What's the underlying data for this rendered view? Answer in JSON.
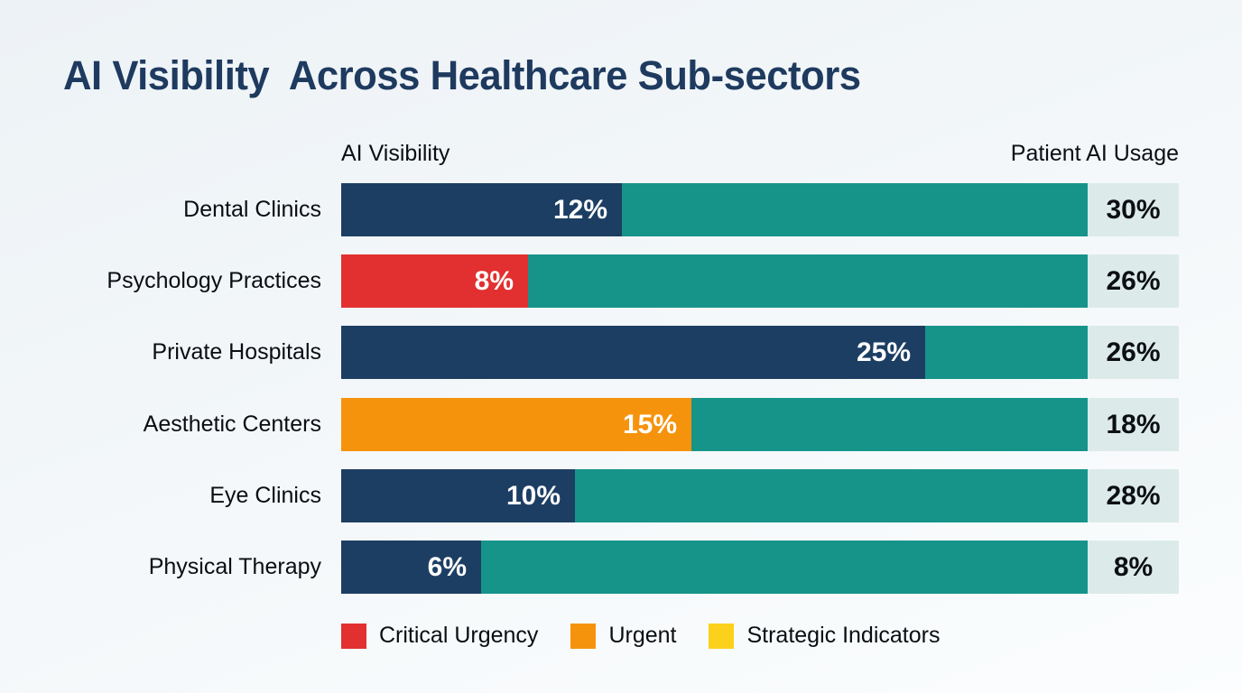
{
  "page": {
    "title": "AI Visibility  Across Healthcare Sub-sectors"
  },
  "columns": {
    "left_header": "AI Visibility",
    "right_header": "Patient AI Usage"
  },
  "rows": [
    {
      "label": "Dental Clinics",
      "ai_visibility_label": "12%",
      "ai_visibility_value": 12,
      "patient_usage_label": "30%",
      "patient_usage_value": 30,
      "segment_color": "#1d3e63"
    },
    {
      "label": "Psychology Practices",
      "ai_visibility_label": "8%",
      "ai_visibility_value": 8,
      "patient_usage_label": "26%",
      "patient_usage_value": 26,
      "segment_color": "#e23030"
    },
    {
      "label": "Private Hospitals",
      "ai_visibility_label": "25%",
      "ai_visibility_value": 25,
      "patient_usage_label": "26%",
      "patient_usage_value": 26,
      "segment_color": "#1d3e63"
    },
    {
      "label": "Aesthetic Centers",
      "ai_visibility_label": "15%",
      "ai_visibility_value": 15,
      "patient_usage_label": "18%",
      "patient_usage_value": 18,
      "segment_color": "#f6930d"
    },
    {
      "label": "Eye Clinics",
      "ai_visibility_label": "10%",
      "ai_visibility_value": 10,
      "patient_usage_label": "28%",
      "patient_usage_value": 28,
      "segment_color": "#1d3e63"
    },
    {
      "label": "Physical Therapy",
      "ai_visibility_label": "6%",
      "ai_visibility_value": 6,
      "patient_usage_label": "8%",
      "patient_usage_value": 8,
      "segment_color": "#1d3e63"
    }
  ],
  "legend": [
    {
      "label": "Critical Urgency",
      "color": "#e23030"
    },
    {
      "label": "Urgent",
      "color": "#f6930d"
    },
    {
      "label": "Strategic Indicators",
      "color": "#fcd11b"
    }
  ],
  "colors": {
    "navy": "#1d3e63",
    "teal": "#17948a",
    "red": "#e23030",
    "orange": "#f6930d",
    "yellow": "#fcd11b",
    "value_box_bg": "#dcebe9",
    "title": "#1e3a5f"
  },
  "chart_data": {
    "type": "bar",
    "orientation": "horizontal",
    "title": "AI Visibility  Across Healthcare Sub-sectors",
    "categories": [
      "Dental Clinics",
      "Psychology Practices",
      "Private Hospitals",
      "Aesthetic Centers",
      "Eye Clinics",
      "Physical Therapy"
    ],
    "series": [
      {
        "name": "AI Visibility",
        "values": [
          12,
          8,
          25,
          15,
          10,
          6
        ],
        "unit": "%"
      },
      {
        "name": "Patient AI Usage",
        "values": [
          30,
          26,
          26,
          18,
          28,
          8
        ],
        "unit": "%"
      }
    ],
    "segment_colors_by_category": [
      "#1d3e63",
      "#e23030",
      "#1d3e63",
      "#f6930d",
      "#1d3e63",
      "#1d3e63"
    ],
    "remainder_color": "#17948a",
    "legend": [
      "Critical Urgency",
      "Urgent",
      "Strategic Indicators"
    ],
    "legend_position": "bottom",
    "grid": false,
    "axis_labels_visible": false
  }
}
